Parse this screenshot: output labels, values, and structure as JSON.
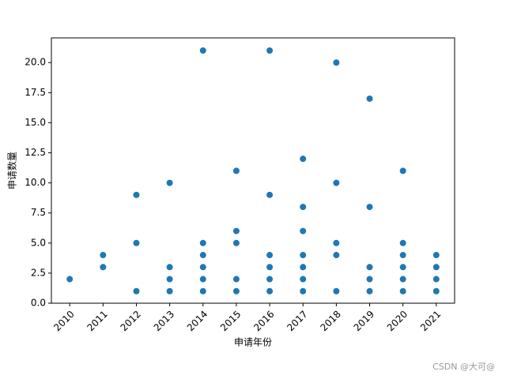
{
  "chart_data": {
    "type": "scatter",
    "x_label": "申请年份",
    "y_label": "申请数量",
    "x": [
      2010,
      2011,
      2011,
      2012,
      2012,
      2012,
      2013,
      2013,
      2013,
      2013,
      2014,
      2014,
      2014,
      2014,
      2014,
      2014,
      2015,
      2015,
      2015,
      2015,
      2015,
      2016,
      2016,
      2016,
      2016,
      2016,
      2016,
      2017,
      2017,
      2017,
      2017,
      2017,
      2017,
      2017,
      2018,
      2018,
      2018,
      2018,
      2018,
      2019,
      2019,
      2019,
      2019,
      2019,
      2020,
      2020,
      2020,
      2020,
      2020,
      2020,
      2021,
      2021,
      2021,
      2021
    ],
    "values": [
      2,
      4,
      3,
      9,
      5,
      1,
      10,
      3,
      2,
      1,
      21,
      5,
      4,
      3,
      2,
      1,
      11,
      6,
      5,
      2,
      1,
      21,
      9,
      4,
      3,
      2,
      1,
      12,
      8,
      6,
      4,
      3,
      2,
      1,
      20,
      10,
      5,
      4,
      1,
      17,
      8,
      3,
      2,
      1,
      11,
      5,
      4,
      3,
      2,
      1,
      4,
      3,
      2,
      1
    ],
    "color": "#1f77b4",
    "xlim": [
      2009.45,
      2021.55
    ],
    "xticks": [
      2010,
      2011,
      2012,
      2013,
      2014,
      2015,
      2016,
      2017,
      2018,
      2019,
      2020,
      2021
    ],
    "ylim": [
      0,
      22.05
    ],
    "yticks": [
      {
        "value": 0,
        "label": "0.0"
      },
      2.5,
      {
        "value": 5,
        "label": "5.0"
      },
      7.5,
      {
        "value": 10,
        "label": "10.0"
      },
      12.5,
      {
        "value": 15,
        "label": "15.0"
      },
      17.5,
      {
        "value": 20,
        "label": "20.0"
      }
    ],
    "grid": false,
    "watermark": "CSDN @大可@"
  }
}
